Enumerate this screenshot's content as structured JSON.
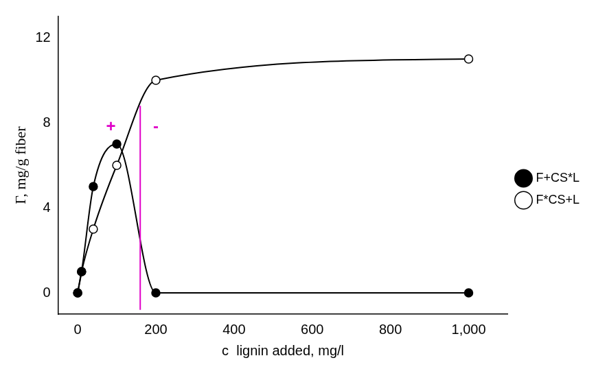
{
  "chart_data": {
    "type": "scatter",
    "x_label": "c  lignin added, mg/l",
    "y_label": "Γ, mg/g fiber",
    "xlim": [
      -50,
      1100
    ],
    "xticks": [
      0,
      200,
      400,
      600,
      800,
      1000
    ],
    "ylim": [
      -1,
      13
    ],
    "yticks": [
      0,
      4,
      8,
      12
    ],
    "grid": false,
    "legend": "right",
    "series": [
      {
        "name": "F+CS*L",
        "color": "#000000",
        "marker": "filled circle",
        "line_style": "solid",
        "x": [
          0,
          10,
          40,
          100,
          200,
          1000
        ],
        "values": [
          0,
          1,
          5,
          7,
          0,
          0
        ]
      },
      {
        "name": "F*CS+L",
        "color": "#000000",
        "marker": "open circle",
        "line_style": "solid",
        "x": [
          0,
          10,
          40,
          100,
          200,
          1000
        ],
        "values": [
          0,
          1,
          3,
          6,
          10,
          11
        ]
      }
    ],
    "reference_line": {
      "x": 160,
      "y_range": [
        -0.8,
        8.8
      ],
      "color": "#e000c8"
    },
    "annotations": [
      {
        "text": "+",
        "x": 85,
        "y": 7.8,
        "color": "#e000c8"
      },
      {
        "text": "-",
        "x": 200,
        "y": 7.8,
        "color": "#e000c8"
      }
    ]
  }
}
